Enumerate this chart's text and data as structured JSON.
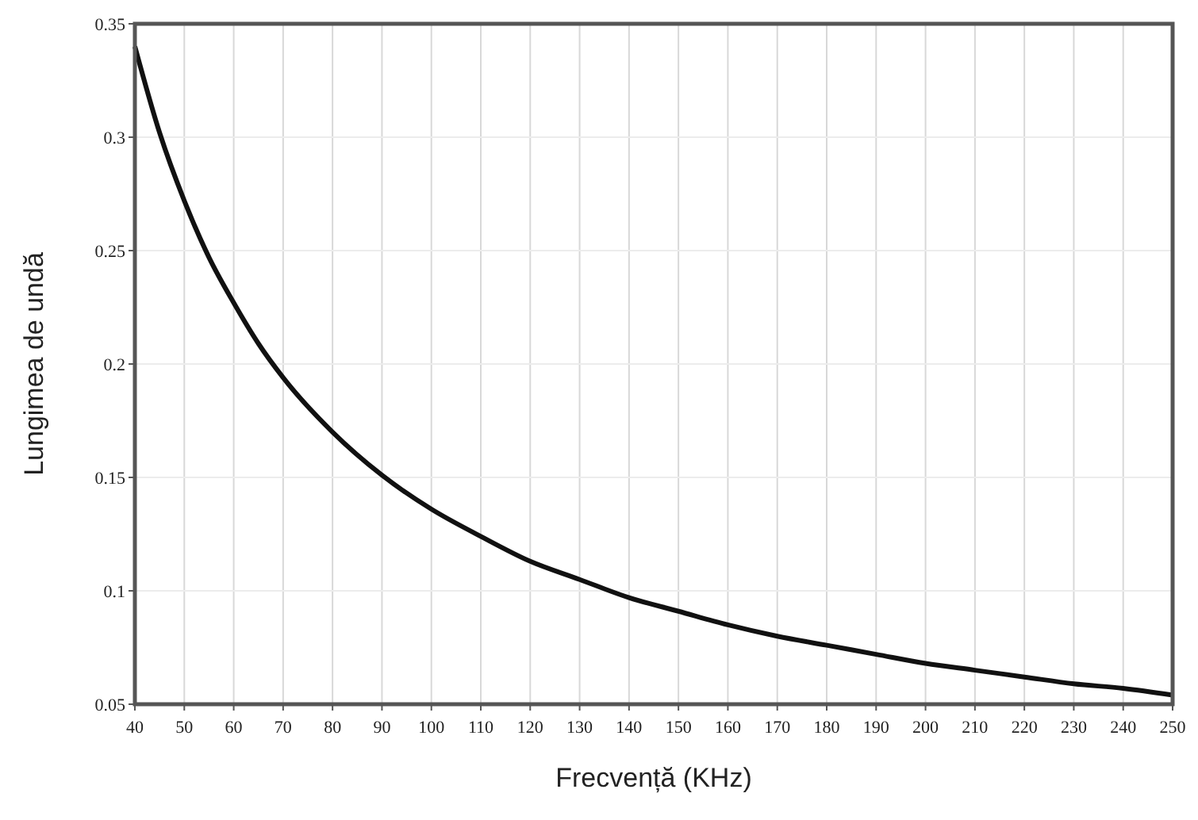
{
  "chart_data": {
    "type": "line",
    "xlabel": "Frecvență (KHz)",
    "ylabel": "Lungimea de undă",
    "x": [
      40,
      45,
      50,
      55,
      60,
      65,
      70,
      80,
      90,
      100,
      110,
      120,
      130,
      140,
      150,
      160,
      170,
      180,
      190,
      200,
      210,
      220,
      230,
      240,
      250
    ],
    "series": [
      {
        "color": "#111111",
        "values": [
          0.34,
          0.302,
          0.272,
          0.247,
          0.227,
          0.209,
          0.194,
          0.17,
          0.151,
          0.136,
          0.124,
          0.113,
          0.105,
          0.097,
          0.091,
          0.085,
          0.08,
          0.076,
          0.072,
          0.068,
          0.065,
          0.062,
          0.059,
          0.057,
          0.054
        ]
      }
    ],
    "xlim": [
      40,
      250
    ],
    "xticks": [
      40,
      50,
      60,
      70,
      80,
      90,
      100,
      110,
      120,
      130,
      140,
      150,
      160,
      170,
      180,
      190,
      200,
      210,
      220,
      230,
      240,
      250
    ],
    "ylim": [
      0.05,
      0.35
    ],
    "yticks": [
      0.05,
      0.1,
      0.15,
      0.2,
      0.25,
      0.3,
      0.35
    ],
    "grid": true,
    "marker": "none",
    "line_style": "solid"
  }
}
